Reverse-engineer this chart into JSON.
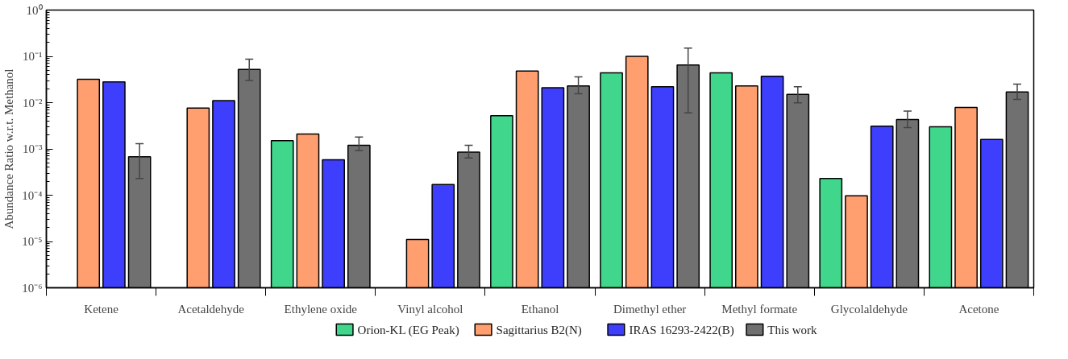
{
  "chart_data": {
    "type": "bar",
    "ylabel": "Abundance Ratio w.r.t. Methanol",
    "categories": [
      "Ketene",
      "Acetaldehyde",
      "Ethylene oxide",
      "Vinyl alcohol",
      "Ethanol",
      "Dimethyl ether",
      "Methyl formate",
      "Glycolaldehyde",
      "Acetone"
    ],
    "series": [
      {
        "name": "Orion-KL (EG Peak)",
        "color": "#40d68c",
        "values": [
          null,
          null,
          0.0015,
          null,
          0.0052,
          0.044,
          0.044,
          0.00023,
          0.003
        ]
      },
      {
        "name": "Sagittarius B2(N)",
        "color": "#ff9f70",
        "values": [
          0.032,
          0.0076,
          0.0021,
          1.1e-05,
          0.048,
          0.1,
          0.023,
          9.7e-05,
          0.0079
        ]
      },
      {
        "name": "IRAS 16293-2422(B)",
        "color": "#3e3efd",
        "values": [
          0.028,
          0.011,
          0.00058,
          0.00017,
          0.021,
          0.022,
          0.037,
          0.0031,
          0.0016
        ]
      },
      {
        "name": "This work",
        "color": "#707070",
        "values": [
          0.00068,
          0.052,
          0.0012,
          0.00085,
          0.023,
          0.065,
          0.015,
          0.0043,
          0.017
        ],
        "errors": [
          [
            0.00023,
            0.0013
          ],
          [
            0.03,
            0.087
          ],
          [
            0.00092,
            0.0018
          ],
          [
            0.00064,
            0.0012
          ],
          [
            0.0155,
            0.036
          ],
          [
            0.006,
            0.15
          ],
          [
            0.0099,
            0.022
          ],
          [
            0.0029,
            0.0066
          ],
          [
            0.0117,
            0.025
          ]
        ]
      }
    ],
    "log": true,
    "ylim": [
      1e-06,
      1
    ],
    "yticks": [
      {
        "value": 1e-06,
        "label": "10⁻⁶"
      },
      {
        "value": 1e-05,
        "label": "10⁻⁵"
      },
      {
        "value": 0.0001,
        "label": "10⁻⁴"
      },
      {
        "value": 0.001,
        "label": "10⁻³"
      },
      {
        "value": 0.01,
        "label": "10⁻²"
      },
      {
        "value": 0.1,
        "label": "10⁻¹"
      },
      {
        "value": 1,
        "label": "10⁰"
      }
    ],
    "legend": "bottom"
  }
}
